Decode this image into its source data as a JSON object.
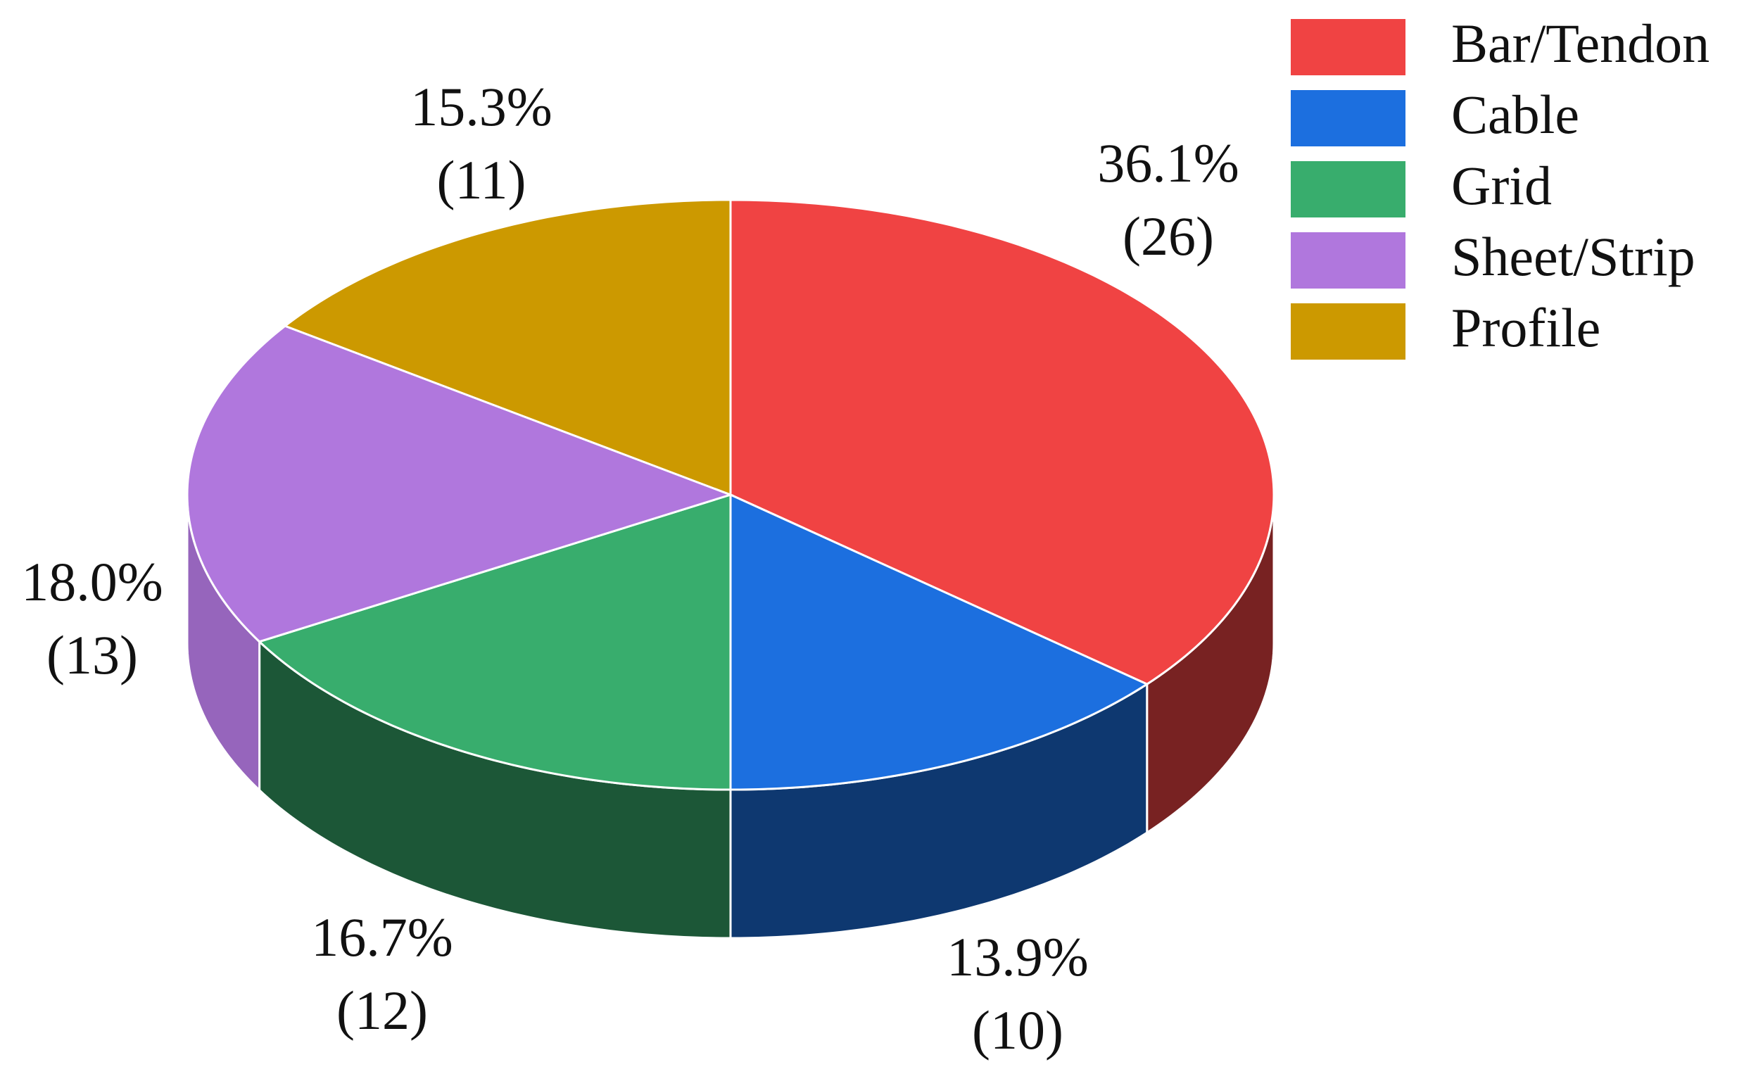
{
  "chart_data": {
    "type": "pie3d",
    "categories": [
      "Bar/Tendon",
      "Cable",
      "Grid",
      "Sheet/Strip",
      "Profile"
    ],
    "values": [
      36.1,
      13.9,
      16.7,
      18.0,
      15.3
    ],
    "value_labels": [
      "36.1%",
      "13.9%",
      "16.7%",
      "18.0%",
      "15.3%"
    ],
    "counts": [
      26,
      10,
      12,
      13,
      11
    ],
    "count_labels": [
      "(26)",
      "(10)",
      "(12)",
      "(13)",
      "(11)"
    ],
    "colors": [
      "#f04343",
      "#1c6fdf",
      "#38ad6d",
      "#b077dd",
      "#cc9900"
    ],
    "legend": "upper right"
  }
}
